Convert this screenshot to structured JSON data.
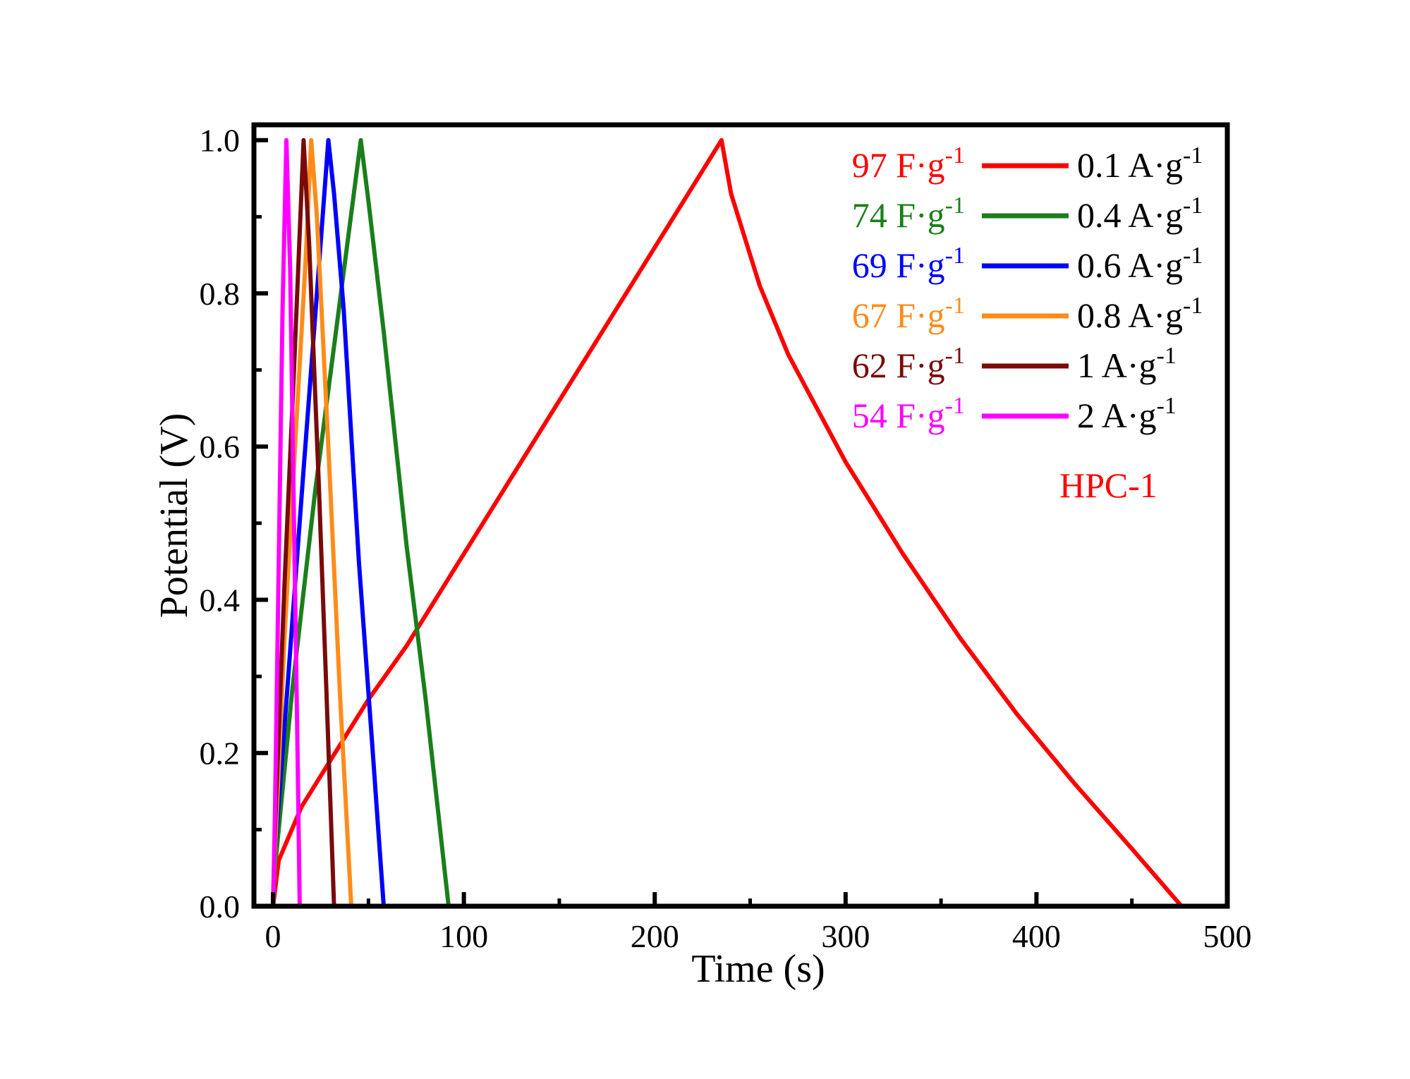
{
  "chart_data": {
    "type": "line",
    "title": "",
    "xlabel": "Time (s)",
    "ylabel": "Potential (V)",
    "xlim": [
      -10,
      500
    ],
    "ylim": [
      0.0,
      1.02
    ],
    "xticks": [
      "0",
      "100",
      "200",
      "300",
      "400",
      "500"
    ],
    "xtick_values": [
      0,
      100,
      200,
      300,
      400,
      500
    ],
    "yticks": [
      "0.0",
      "0.2",
      "0.4",
      "0.6",
      "0.8",
      "1.0"
    ],
    "ytick_values": [
      0.0,
      0.2,
      0.4,
      0.6,
      0.8,
      1.0
    ],
    "annotation": "HPC-1",
    "annotation_color": "#ff0000",
    "series": [
      {
        "name": "0.1 A·g",
        "capacitance": "97 F·g",
        "superscript": "-1",
        "color": "#ff0000",
        "points": [
          [
            0,
            0.0
          ],
          [
            3,
            0.06
          ],
          [
            15,
            0.13
          ],
          [
            30,
            0.19
          ],
          [
            50,
            0.27
          ],
          [
            70,
            0.34
          ],
          [
            90,
            0.42
          ],
          [
            110,
            0.5
          ],
          [
            130,
            0.58
          ],
          [
            150,
            0.66
          ],
          [
            170,
            0.74
          ],
          [
            190,
            0.82
          ],
          [
            210,
            0.9
          ],
          [
            225,
            0.96
          ],
          [
            235,
            1.0
          ],
          [
            240,
            0.93
          ],
          [
            255,
            0.81
          ],
          [
            270,
            0.72
          ],
          [
            300,
            0.58
          ],
          [
            330,
            0.46
          ],
          [
            360,
            0.35
          ],
          [
            390,
            0.25
          ],
          [
            420,
            0.16
          ],
          [
            450,
            0.075
          ],
          [
            476,
            0.0
          ]
        ]
      },
      {
        "name": "0.4 A·g",
        "capacitance": "74 F·g",
        "superscript": "-1",
        "color": "#1a7f1a",
        "points": [
          [
            0,
            0.0
          ],
          [
            1,
            0.05
          ],
          [
            10,
            0.28
          ],
          [
            22,
            0.54
          ],
          [
            34,
            0.77
          ],
          [
            46,
            1.0
          ],
          [
            50,
            0.92
          ],
          [
            58,
            0.75
          ],
          [
            70,
            0.47
          ],
          [
            80,
            0.27
          ],
          [
            92,
            0.0
          ]
        ]
      },
      {
        "name": "0.6 A·g",
        "capacitance": "69 F·g",
        "superscript": "-1",
        "color": "#0000ff",
        "points": [
          [
            0,
            0.0
          ],
          [
            1,
            0.07
          ],
          [
            8,
            0.3
          ],
          [
            16,
            0.57
          ],
          [
            23,
            0.8
          ],
          [
            29,
            1.0
          ],
          [
            32,
            0.93
          ],
          [
            37,
            0.78
          ],
          [
            45,
            0.45
          ],
          [
            52,
            0.21
          ],
          [
            58,
            0.0
          ]
        ]
      },
      {
        "name": "0.8 A·g",
        "capacitance": "67 F·g",
        "superscript": "-1",
        "color": "#ff8c1a",
        "points": [
          [
            0,
            0.0
          ],
          [
            1,
            0.07
          ],
          [
            6,
            0.35
          ],
          [
            12,
            0.62
          ],
          [
            17,
            0.84
          ],
          [
            20,
            1.0
          ],
          [
            23,
            0.9
          ],
          [
            29,
            0.6
          ],
          [
            35,
            0.28
          ],
          [
            41,
            0.0
          ]
        ]
      },
      {
        "name": "1 A·g",
        "capacitance": "62 F·g",
        "superscript": "-1",
        "color": "#7a0a0a",
        "points": [
          [
            0,
            0.0
          ],
          [
            1,
            0.1
          ],
          [
            6,
            0.42
          ],
          [
            11,
            0.7
          ],
          [
            16,
            1.0
          ],
          [
            19,
            0.86
          ],
          [
            24,
            0.55
          ],
          [
            28,
            0.28
          ],
          [
            32,
            0.0
          ]
        ]
      },
      {
        "name": "2 A·g",
        "capacitance": "54 F·g",
        "superscript": "-1",
        "color": "#ff00ff",
        "points": [
          [
            0,
            0.0
          ],
          [
            1,
            0.12
          ],
          [
            3,
            0.45
          ],
          [
            5,
            0.78
          ],
          [
            7,
            1.0
          ],
          [
            9,
            0.83
          ],
          [
            11,
            0.5
          ],
          [
            13,
            0.18
          ],
          [
            14,
            0.0
          ]
        ]
      }
    ]
  }
}
